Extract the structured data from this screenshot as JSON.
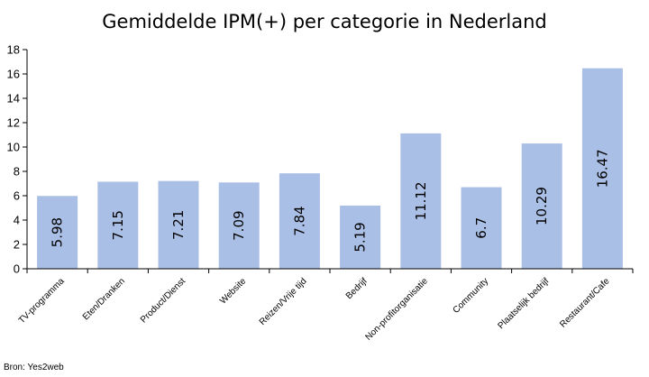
{
  "source_text": "Bron: Yes2web",
  "colors": {
    "bar": "#AABFE6",
    "axis": "#000000"
  },
  "chart_data": {
    "type": "bar",
    "title": "Gemiddelde IPM(+) per categorie in Nederland",
    "xlabel": "",
    "ylabel": "",
    "ylim": [
      0,
      18
    ],
    "yticks": [
      0,
      2,
      4,
      6,
      8,
      10,
      12,
      14,
      16,
      18
    ],
    "grid": false,
    "legend": "none",
    "categories": [
      "TV-programma",
      "Eten/Dranken",
      "Product/Dienst",
      "Website",
      "Reizen/Vrije tijd",
      "Bedrijf",
      "Non-profitorganisatie",
      "Community",
      "Plaatselijk bedrijf",
      "Restaurant/Cafe"
    ],
    "values": [
      5.98,
      7.15,
      7.21,
      7.09,
      7.84,
      5.19,
      11.12,
      6.7,
      10.29,
      16.47
    ],
    "data_labels": [
      "5.98",
      "7.15",
      "7.21",
      "7.09",
      "7.84",
      "5.19",
      "11.12",
      "6.7",
      "10.29",
      "16.47"
    ]
  }
}
